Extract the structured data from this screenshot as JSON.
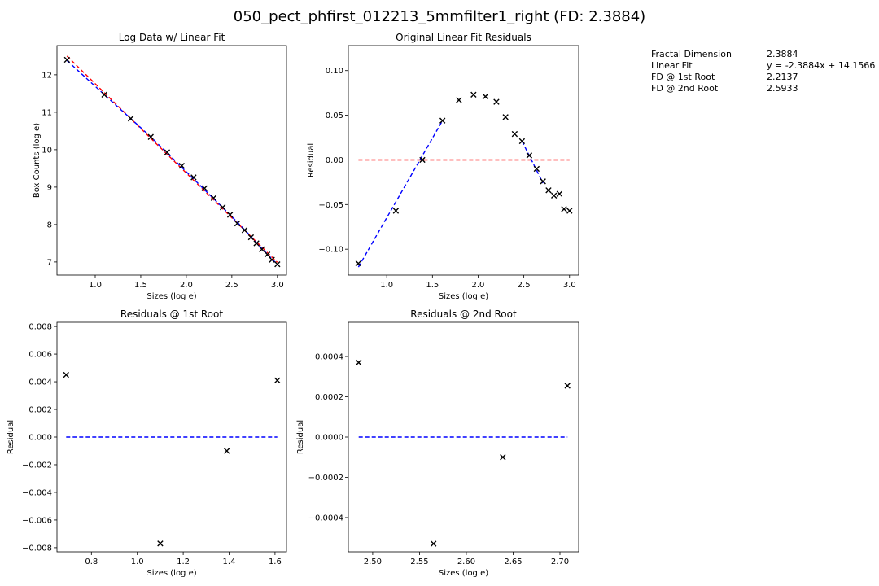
{
  "figure_title": "050_pect_phfirst_012213_5mmfilter1_right (FD: 2.3884)",
  "info": [
    {
      "label": "Fractal Dimension",
      "value": "2.3884"
    },
    {
      "label": "Linear Fit",
      "value": "y = -2.3884x + 14.1566"
    },
    {
      "label": "FD @ 1st Root",
      "value": "2.2137"
    },
    {
      "label": "FD @ 2nd Root",
      "value": "2.5933"
    }
  ],
  "colors": {
    "points": "#000000",
    "fit_red": "#ff0000",
    "fit_blue": "#0000ff",
    "zero_red": "#ff0000",
    "zero_blue": "#0000ff"
  },
  "chart_data": [
    {
      "type": "scatter",
      "title": "Log Data w/ Linear Fit",
      "xlabel": "Sizes (log e)",
      "ylabel": "Box Counts (log e)",
      "xlim": [
        0.58,
        3.1
      ],
      "ylim": [
        6.65,
        12.78
      ],
      "xticks": [
        {
          "v": 1.0,
          "t": "1.0"
        },
        {
          "v": 1.5,
          "t": "1.5"
        },
        {
          "v": 2.0,
          "t": "2.0"
        },
        {
          "v": 2.5,
          "t": "2.5"
        },
        {
          "v": 3.0,
          "t": "3.0"
        }
      ],
      "yticks": [
        {
          "v": 7,
          "t": "7"
        },
        {
          "v": 8,
          "t": "8"
        },
        {
          "v": 9,
          "t": "9"
        },
        {
          "v": 10,
          "t": "10"
        },
        {
          "v": 11,
          "t": "11"
        },
        {
          "v": 12,
          "t": "12"
        }
      ],
      "points": {
        "x": [
          0.69,
          1.1,
          1.39,
          1.61,
          1.79,
          1.95,
          2.08,
          2.2,
          2.3,
          2.4,
          2.48,
          2.56,
          2.64,
          2.71,
          2.77,
          2.83,
          2.89,
          2.94,
          3.0
        ],
        "y": [
          12.4,
          11.47,
          10.83,
          10.34,
          9.93,
          9.57,
          9.26,
          8.97,
          8.71,
          8.46,
          8.26,
          8.03,
          7.85,
          7.66,
          7.5,
          7.34,
          7.2,
          7.06,
          6.94
        ]
      },
      "lines": [
        {
          "color": "fit_red",
          "x": [
            0.69,
            3.0
          ],
          "y": [
            12.5,
            6.99
          ]
        },
        {
          "color": "fit_blue",
          "x": [
            0.69,
            1.1,
            1.39,
            1.61,
            2.48,
            2.64,
            2.71,
            2.77,
            2.83,
            2.89,
            2.94,
            3.0
          ],
          "y": [
            12.38,
            11.47,
            10.83,
            10.34,
            8.26,
            7.86,
            7.68,
            7.51,
            7.36,
            7.21,
            7.08,
            6.94
          ]
        }
      ]
    },
    {
      "type": "scatter",
      "title": "Original Linear Fit Residuals",
      "xlabel": "Sizes (log e)",
      "ylabel": "Residual",
      "xlim": [
        0.58,
        3.1
      ],
      "ylim": [
        -0.129,
        0.128
      ],
      "xticks": [
        {
          "v": 1.0,
          "t": "1.0"
        },
        {
          "v": 1.5,
          "t": "1.5"
        },
        {
          "v": 2.0,
          "t": "2.0"
        },
        {
          "v": 2.5,
          "t": "2.5"
        },
        {
          "v": 3.0,
          "t": "3.0"
        }
      ],
      "yticks": [
        {
          "v": -0.1,
          "t": "−0.10"
        },
        {
          "v": -0.05,
          "t": "−0.05"
        },
        {
          "v": 0.0,
          "t": "0.00"
        },
        {
          "v": 0.05,
          "t": "0.05"
        },
        {
          "v": 0.1,
          "t": "0.10"
        }
      ],
      "points": {
        "x": [
          0.69,
          1.1,
          1.39,
          1.61,
          1.79,
          1.95,
          2.08,
          2.2,
          2.3,
          2.4,
          2.48,
          2.56,
          2.64,
          2.71,
          2.77,
          2.83,
          2.89,
          2.94,
          3.0
        ],
        "y": [
          -0.116,
          -0.057,
          0.0,
          0.044,
          0.067,
          0.073,
          0.071,
          0.065,
          0.048,
          0.029,
          0.021,
          0.005,
          -0.01,
          -0.024,
          -0.034,
          -0.04,
          -0.038,
          -0.055,
          -0.057
        ]
      },
      "lines": [
        {
          "color": "zero_red",
          "x": [
            0.69,
            3.0
          ],
          "y": [
            0.0,
            0.0
          ]
        },
        {
          "color": "fit_blue",
          "x": [
            0.69,
            1.61
          ],
          "y": [
            -0.12,
            0.044
          ]
        },
        {
          "color": "fit_blue",
          "x": [
            2.48,
            2.71
          ],
          "y": [
            0.021,
            -0.026
          ]
        }
      ]
    },
    {
      "type": "scatter",
      "title": "Residuals @ 1st Root",
      "xlabel": "Sizes (log e)",
      "ylabel": "Residual",
      "xlim": [
        0.65,
        1.65
      ],
      "ylim": [
        -0.0083,
        0.0083
      ],
      "xticks": [
        {
          "v": 0.8,
          "t": "0.8"
        },
        {
          "v": 1.0,
          "t": "1.0"
        },
        {
          "v": 1.2,
          "t": "1.2"
        },
        {
          "v": 1.4,
          "t": "1.4"
        },
        {
          "v": 1.6,
          "t": "1.6"
        }
      ],
      "yticks": [
        {
          "v": -0.008,
          "t": "−0.008"
        },
        {
          "v": -0.006,
          "t": "−0.006"
        },
        {
          "v": -0.004,
          "t": "−0.004"
        },
        {
          "v": -0.002,
          "t": "−0.002"
        },
        {
          "v": 0.0,
          "t": "0.000"
        },
        {
          "v": 0.002,
          "t": "0.002"
        },
        {
          "v": 0.004,
          "t": "0.004"
        },
        {
          "v": 0.006,
          "t": "0.006"
        },
        {
          "v": 0.008,
          "t": "0.008"
        }
      ],
      "points": {
        "x": [
          0.69,
          1.1,
          1.39,
          1.61
        ],
        "y": [
          0.0045,
          -0.0077,
          -0.001,
          0.0041
        ]
      },
      "lines": [
        {
          "color": "zero_blue",
          "x": [
            0.69,
            1.61
          ],
          "y": [
            0.0,
            0.0
          ]
        }
      ]
    },
    {
      "type": "scatter",
      "title": "Residuals @ 2nd Root",
      "xlabel": "Sizes (log e)",
      "ylabel": "Residual",
      "xlim": [
        2.474,
        2.72
      ],
      "ylim": [
        -0.00057,
        0.00057
      ],
      "xticks": [
        {
          "v": 2.5,
          "t": "2.50"
        },
        {
          "v": 2.55,
          "t": "2.55"
        },
        {
          "v": 2.6,
          "t": "2.60"
        },
        {
          "v": 2.65,
          "t": "2.65"
        },
        {
          "v": 2.7,
          "t": "2.70"
        }
      ],
      "yticks": [
        {
          "v": -0.0004,
          "t": "−0.0004"
        },
        {
          "v": -0.0002,
          "t": "−0.0002"
        },
        {
          "v": 0.0,
          "t": "0.0000"
        },
        {
          "v": 0.0002,
          "t": "0.0002"
        },
        {
          "v": 0.0004,
          "t": "0.0004"
        }
      ],
      "points": {
        "x": [
          2.485,
          2.565,
          2.639,
          2.708
        ],
        "y": [
          0.00037,
          -0.00053,
          -0.0001,
          0.000255
        ]
      },
      "lines": [
        {
          "color": "zero_blue",
          "x": [
            2.485,
            2.708
          ],
          "y": [
            0.0,
            0.0
          ]
        }
      ]
    }
  ]
}
